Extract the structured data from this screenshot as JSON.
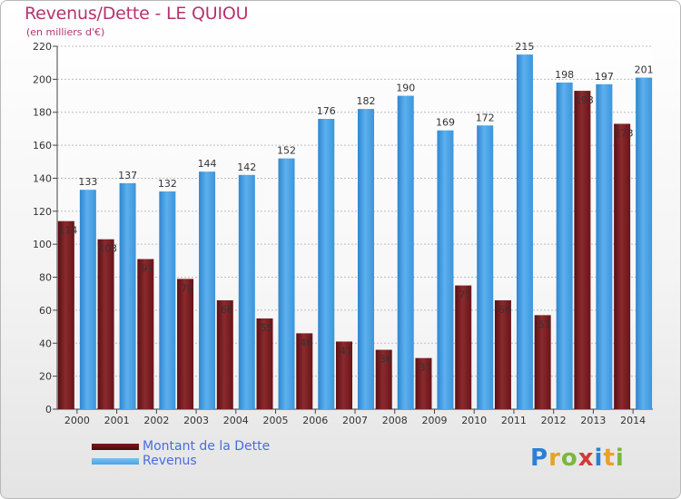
{
  "title": "Revenus/Dette - LE QUIOU",
  "subtitle": "(en milliers d'€)",
  "logo": {
    "letters": [
      "P",
      "r",
      "o",
      "x",
      "i",
      "t",
      "i"
    ],
    "colors": [
      "#2b7fd4",
      "#e8a12a",
      "#7ab83a",
      "#d23a3a",
      "#2b7fd4",
      "#e8a12a",
      "#7ab83a"
    ]
  },
  "chart_data": {
    "type": "bar",
    "categories": [
      "2000",
      "2001",
      "2002",
      "2003",
      "2004",
      "2005",
      "2006",
      "2007",
      "2008",
      "2009",
      "2010",
      "2011",
      "2012",
      "2013",
      "2014"
    ],
    "series": [
      {
        "name": "Montant de la Dette",
        "color": "#7a1a1e",
        "values": [
          114,
          103,
          91,
          79,
          66,
          55,
          46,
          41,
          36,
          31,
          75,
          66,
          57,
          193,
          173
        ]
      },
      {
        "name": "Revenus",
        "color": "#4aa3e8",
        "values": [
          133,
          137,
          132,
          144,
          142,
          152,
          176,
          182,
          190,
          169,
          172,
          215,
          198,
          197,
          201
        ]
      }
    ],
    "ylim": [
      0,
      220
    ],
    "yticks": [
      0,
      20,
      40,
      60,
      80,
      100,
      120,
      140,
      160,
      180,
      200,
      220
    ],
    "grid": true,
    "legend": "bottom-left"
  }
}
